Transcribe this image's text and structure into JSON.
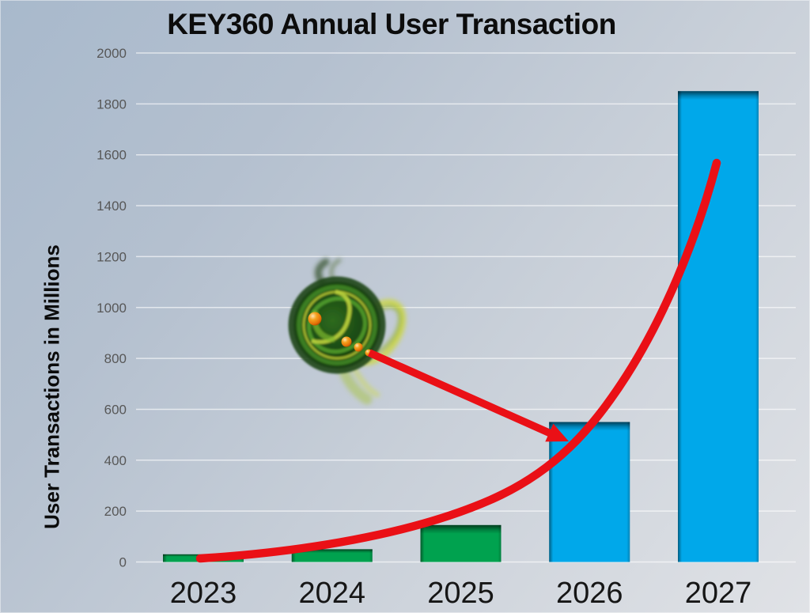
{
  "chart_data": {
    "type": "bar",
    "title": "KEY360 Annual User Transaction",
    "ylabel": "User Transactions in Millions",
    "xlabel": "",
    "categories": [
      "2023",
      "2024",
      "2025",
      "2026",
      "2027"
    ],
    "values": [
      30,
      50,
      145,
      550,
      1850
    ],
    "bar_colors": [
      "#00a24f",
      "#00a24f",
      "#00a24f",
      "#00a8ea",
      "#00a8ea"
    ],
    "ylim": [
      0,
      2000
    ],
    "ytick_step": 200,
    "yticks": [
      0,
      200,
      400,
      600,
      800,
      1000,
      1200,
      1400,
      1600,
      1800,
      2000
    ],
    "grid": true,
    "legend_position": "none",
    "annotations": [
      {
        "name": "growth-curve",
        "type": "curve",
        "color": "#ea1016",
        "description": "red exponential growth trend line sweeping from the 2023 bar up past the 2027 bar"
      },
      {
        "name": "logo-arrow",
        "type": "arrow",
        "color": "#ea1016",
        "description": "red arrow pointing from the KEY360 logo to the top-left corner of the 2026 bar"
      },
      {
        "name": "key360-logo",
        "type": "image",
        "description": "green swirl vortex logo with orange spheres"
      }
    ]
  },
  "colors": {
    "background_top_left": "#a8b9cc",
    "background_bottom_right": "#e0e2e6",
    "green_bar": "#00a24f",
    "blue_bar": "#00a8ea",
    "annotation_red": "#ea1016",
    "tick_label": "#575757",
    "title_text": "#0c0c0c"
  }
}
